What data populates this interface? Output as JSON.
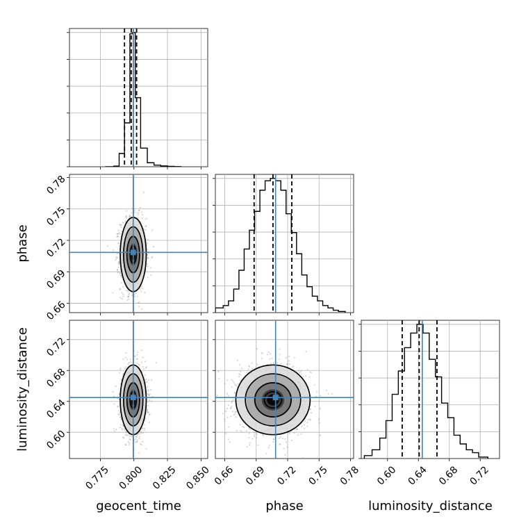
{
  "chart_data": {
    "type": "corner",
    "parameters": [
      "geocent_time",
      "phase",
      "luminosity_distance"
    ],
    "axis_labels": {
      "x": [
        "geocent_time",
        "phase",
        "luminosity_distance"
      ],
      "y": [
        "phase",
        "luminosity_distance"
      ]
    },
    "ranges": {
      "geocent_time": [
        0.752,
        0.855
      ],
      "phase": [
        0.651,
        0.783
      ],
      "luminosity_distance": [
        0.566,
        0.745
      ]
    },
    "ticks": {
      "geocent_time": [
        "0.775",
        "0.800",
        "0.825",
        "0.850"
      ],
      "phase": [
        "0.66",
        "0.69",
        "0.72",
        "0.75",
        "0.78"
      ],
      "luminosity_distance": [
        "0.60",
        "0.64",
        "0.68",
        "0.72"
      ]
    },
    "truths": {
      "geocent_time": 0.7995,
      "phase": 0.7085,
      "luminosity_distance": 0.645
    },
    "quantiles": {
      "geocent_time": [
        0.793,
        0.798,
        0.802
      ],
      "phase": [
        0.688,
        0.706,
        0.724
      ],
      "luminosity_distance": [
        0.619,
        0.641,
        0.664
      ]
    },
    "histograms": {
      "geocent_time": {
        "bins": [
          0.779,
          0.785,
          0.789,
          0.793,
          0.797,
          0.799,
          0.801,
          0.805,
          0.81,
          0.815,
          0.82,
          0.825,
          0.83,
          0.835
        ],
        "counts": [
          0.5,
          5,
          100,
          330,
          1000,
          1010,
          520,
          140,
          30,
          12,
          6,
          3,
          1
        ]
      },
      "phase": {
        "bins": [
          0.651,
          0.6585,
          0.6635,
          0.6685,
          0.6735,
          0.6785,
          0.6835,
          0.6885,
          0.6935,
          0.6985,
          0.7035,
          0.7085,
          0.7135,
          0.7185,
          0.7235,
          0.7285,
          0.7335,
          0.7385,
          0.7435,
          0.7485,
          0.7535,
          0.7585,
          0.7635,
          0.7685,
          0.775
        ],
        "counts": [
          20,
          30,
          50,
          100,
          180,
          270,
          350,
          430,
          520,
          560,
          570,
          560,
          520,
          420,
          340,
          250,
          160,
          110,
          70,
          50,
          30,
          20,
          10,
          5
        ]
      },
      "luminosity_distance": {
        "bins": [
          0.57,
          0.58,
          0.59,
          0.598,
          0.606,
          0.614,
          0.622,
          0.63,
          0.638,
          0.646,
          0.654,
          0.662,
          0.67,
          0.678,
          0.686,
          0.694,
          0.702,
          0.71,
          0.718,
          0.73
        ],
        "counts": [
          10,
          30,
          70,
          130,
          220,
          300,
          380,
          430,
          460,
          430,
          340,
          280,
          190,
          140,
          80,
          50,
          30,
          20,
          5
        ]
      }
    },
    "posterior_2d": {
      "phase_vs_geocent_time": {
        "center": [
          0.7995,
          0.7065
        ],
        "sigma": [
          0.0045,
          0.0165
        ]
      },
      "luminosity_distance_vs_geocent_time": {
        "center": [
          0.7995,
          0.642
        ],
        "sigma": [
          0.0045,
          0.021
        ]
      },
      "luminosity_distance_vs_phase": {
        "center": [
          0.706,
          0.642
        ],
        "sigma": [
          0.0165,
          0.021
        ]
      }
    },
    "colors": {
      "truth": "#4682b4",
      "line": "#000000",
      "grid": "#b0b0b0"
    },
    "grid": true
  }
}
